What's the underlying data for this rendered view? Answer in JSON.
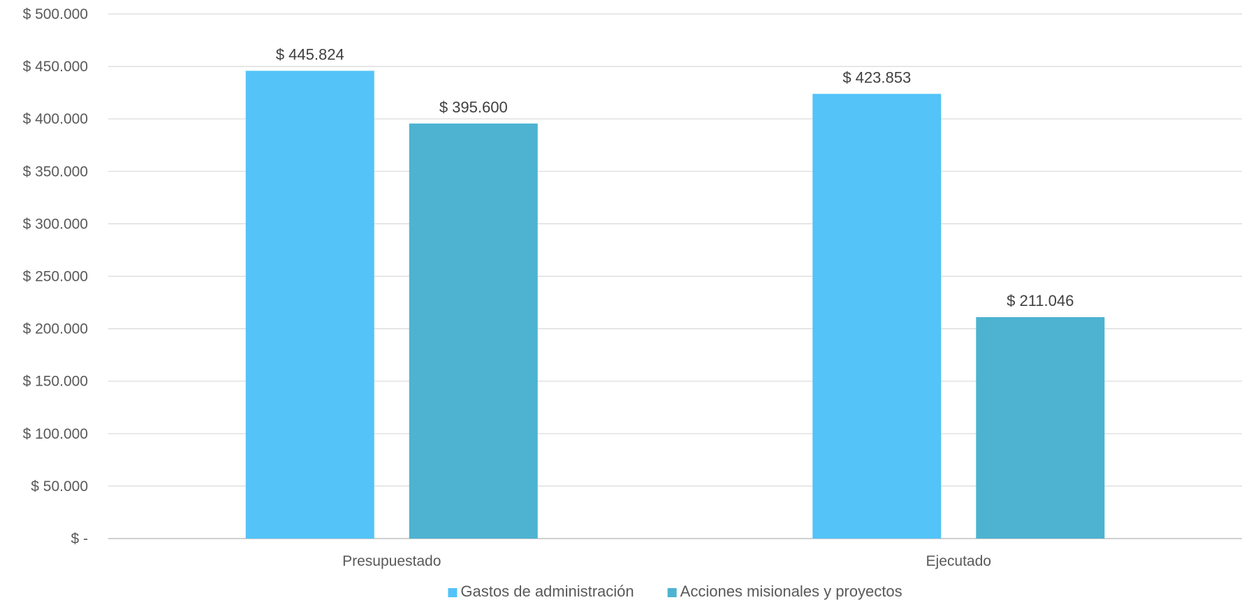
{
  "chart_data": {
    "type": "bar",
    "categories": [
      "Presupuestado",
      "Ejecutado"
    ],
    "series": [
      {
        "name": "Gastos de administración",
        "color": "#53C3F8",
        "values": [
          445824,
          423853
        ],
        "labels": [
          "$ 445.824",
          "$ 423.853"
        ]
      },
      {
        "name": "Acciones misionales y proyectos",
        "color": "#4DB3D1",
        "values": [
          395600,
          211046
        ],
        "labels": [
          "$ 395.600",
          "$ 211.046"
        ]
      }
    ],
    "ylim": [
      0,
      500000
    ],
    "yticks": [
      0,
      50000,
      100000,
      150000,
      200000,
      250000,
      300000,
      350000,
      400000,
      450000,
      500000
    ],
    "ytick_labels": [
      "$ -",
      "$ 50.000",
      "$ 100.000",
      "$ 150.000",
      "$ 200.000",
      "$ 250.000",
      "$ 300.000",
      "$ 350.000",
      "$ 400.000",
      "$ 450.000",
      "$ 500.000"
    ],
    "grid": true,
    "legend": "bottom-center",
    "xlabel": "",
    "ylabel": "",
    "title": ""
  }
}
